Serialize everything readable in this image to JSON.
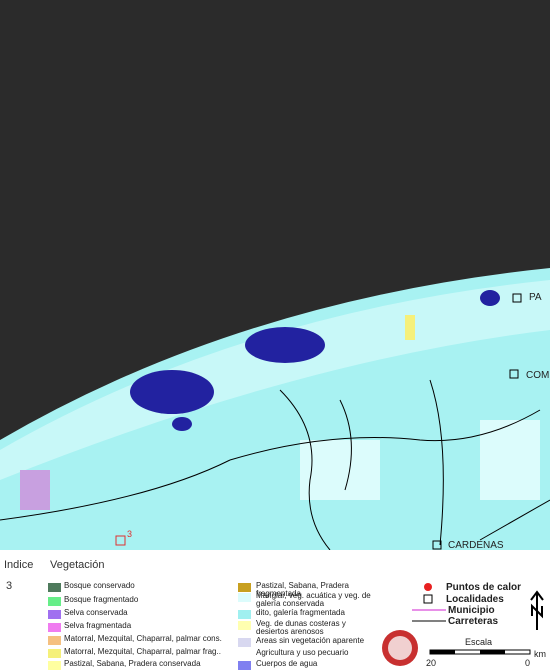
{
  "map_labels": {
    "town_1": "PA",
    "town_2": "COM",
    "town_3": "CARDENAS",
    "point_index": "3"
  },
  "header": {
    "index_title": "Indice",
    "vegetation_title": "Vegetación",
    "index_value": "3"
  },
  "vegetation_legend": [
    {
      "label": "Bosque conservado",
      "color": "#4e7a5c"
    },
    {
      "label": "Bosque fragmentado",
      "color": "#66ee88"
    },
    {
      "label": "Selva conservada",
      "color": "#a070f0"
    },
    {
      "label": "Selva fragmentada",
      "color": "#f07cf0"
    },
    {
      "label": "Matorral, Mezquital, Chaparral, palmar cons.",
      "color": "#f5c080"
    },
    {
      "label": "Matorral, Mezquital, Chaparral, palmar frag..",
      "color": "#f5f07a"
    },
    {
      "label": "Pastizal, Sabana, Pradera conservada",
      "color": "#ffffa0"
    },
    {
      "label": "Pastizal, Sabana, Pradera fragmentada",
      "color": "#c8a020"
    },
    {
      "label": "Manglar, veg. acuática y veg. de galería conservada",
      "color": "#dcfcfc"
    },
    {
      "label": "dito, galería fragmentada",
      "color": "#a0f0f0"
    },
    {
      "label": "Veg. de dunas costeras y desiertos arenosos",
      "color": "#ffffb0"
    },
    {
      "label": "Areas sin vegetación aparente",
      "color": "#d8d8f0"
    },
    {
      "label": "Agricultura y uso pecuario",
      "color": "#ffffff"
    },
    {
      "label": "Cuerpos de agua",
      "color": "#8080f0"
    }
  ],
  "symbols": {
    "hotspots": "Puntos de calor",
    "towns": "Localidades",
    "municipality": "Municipio",
    "roads": "Carreteras"
  },
  "scale": {
    "title": "Escala",
    "unit": "km",
    "left": "20",
    "right": "0"
  }
}
